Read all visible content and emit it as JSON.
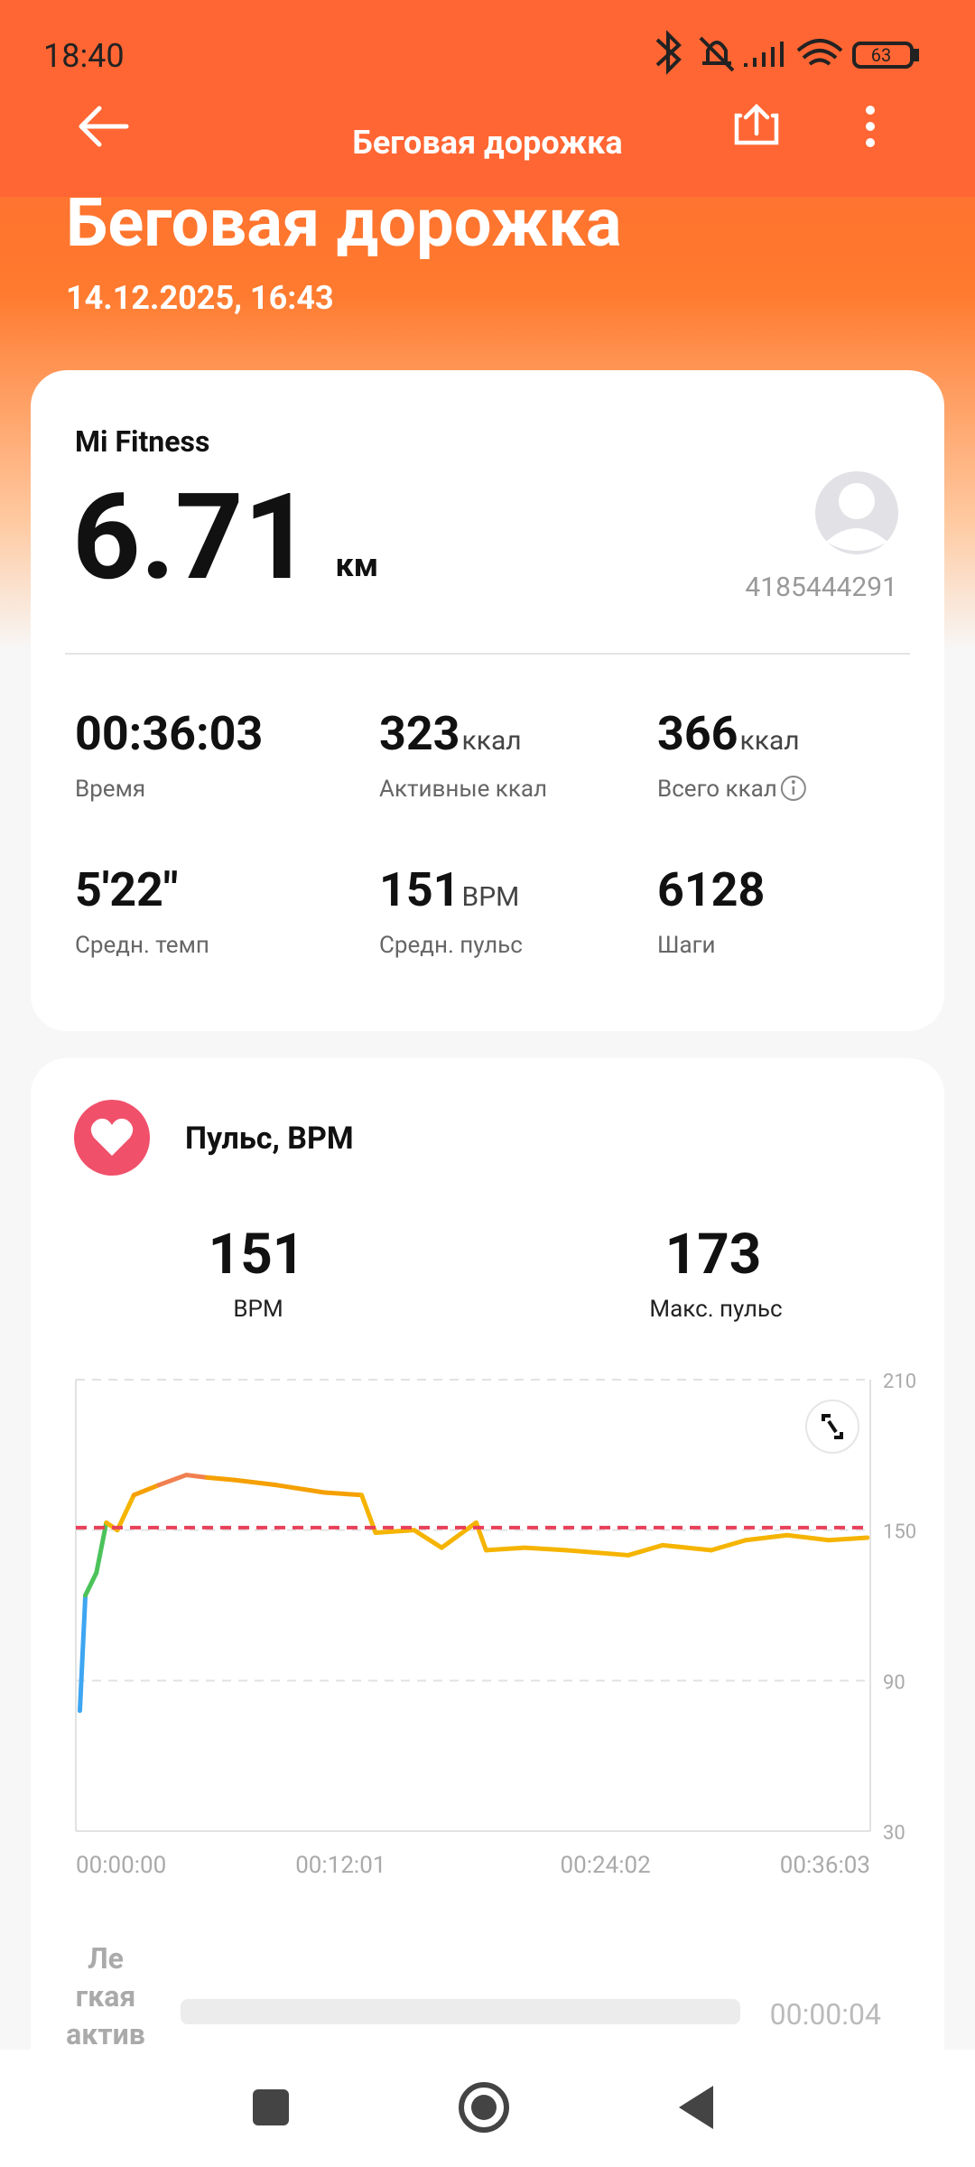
{
  "status_bar": {
    "time": "18:40",
    "battery": "63"
  },
  "header": {
    "title": "Беговая дорожка",
    "big_title": "Беговая дорожка",
    "date": "14.12.2025, 16:43"
  },
  "summary": {
    "source": "Mi Fitness",
    "distance": "6.71",
    "distance_unit": "км",
    "user_id": "4185444291",
    "stats": [
      {
        "value": "00:36:03",
        "label": "Время"
      },
      {
        "value": "323",
        "unit": "ккал",
        "label": "Активные ккал"
      },
      {
        "value": "366",
        "unit": "ккал",
        "label": "Всего ккал"
      },
      {
        "value": "5'22\"",
        "label": "Средн. темп"
      },
      {
        "value": "151",
        "unit": "BPM",
        "label": "Средн. пульс"
      },
      {
        "value": "6128",
        "label": "Шаги"
      }
    ]
  },
  "heart": {
    "title": "Пульс, BPM",
    "avg": 151,
    "avg_label": "BPM",
    "max": 173,
    "max_label": "Макс. пульс",
    "chart": {
      "type": "line",
      "x": [
        11,
        26,
        56,
        83,
        113,
        158,
        226,
        301,
        357,
        432,
        545,
        677,
        778,
        816,
        921,
        996,
        1090,
        1117,
        1222,
        1335,
        1504,
        1598,
        1730,
        1824,
        1937,
        2050,
        2155
      ],
      "values": [
        78,
        124,
        133,
        153,
        150,
        164,
        168,
        172,
        171,
        170,
        168,
        165,
        164,
        149,
        150,
        143,
        153,
        142,
        143,
        142,
        140,
        144,
        142,
        146,
        148,
        146,
        147
      ],
      "point_colors": [
        "#3ea6f2",
        "#4cc35a",
        "#4cc35a",
        "#f5b400",
        "#f5b400",
        "#f5a000",
        "#f08050",
        "#f08050",
        "#f5a000",
        "#f5a000",
        "#f5a000",
        "#f5a000",
        "#f5b400",
        "#f5b400",
        "#f5b400",
        "#f5b400",
        "#f5b400",
        "#f5b400",
        "#f5b400",
        "#f5b400",
        "#f5b400",
        "#f5b400",
        "#f5b400",
        "#f5b400",
        "#f5b400",
        "#f5b400",
        "#f5b400"
      ],
      "avg_line_color": "#e8405a",
      "xlim": [
        0,
        2163
      ],
      "xticks": [
        {
          "value": 0,
          "label": "00:00:00"
        },
        {
          "value": 721,
          "label": "00:12:01"
        },
        {
          "value": 1442,
          "label": "00:24:02"
        },
        {
          "value": 2163,
          "label": "00:36:03"
        }
      ],
      "ylim": [
        30,
        210
      ],
      "yticks": [
        30,
        90,
        150,
        210
      ],
      "grid": true
    }
  },
  "zone": {
    "name_lines": [
      "Ле",
      "гкая",
      "актив"
    ],
    "time": "00:00:04"
  }
}
